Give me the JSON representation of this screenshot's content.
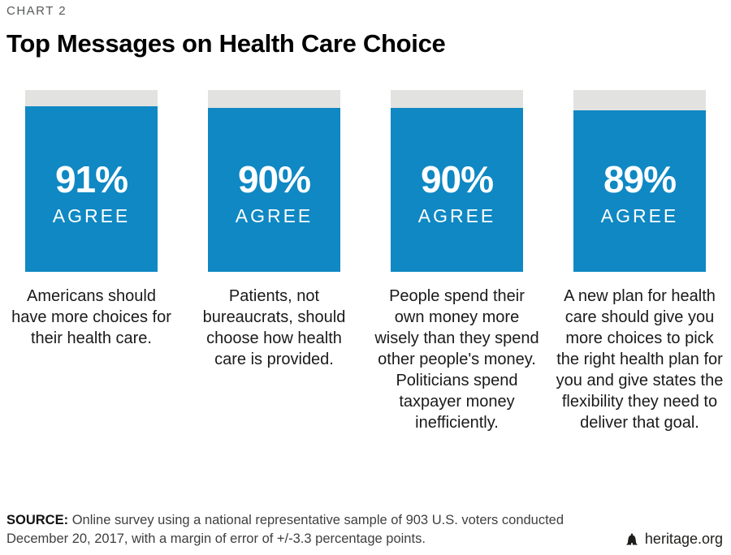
{
  "header": {
    "kicker": "CHART 2",
    "title": "Top Messages on Health Care Choice"
  },
  "chart_data": {
    "type": "bar",
    "title": "Top Messages on Health Care Choice",
    "unit": "% agree",
    "ylim": [
      0,
      100
    ],
    "grid": false,
    "legend": false,
    "values": [
      91,
      90,
      90,
      89
    ],
    "value_labels": [
      "91%",
      "90%",
      "90%",
      "89%"
    ],
    "value_sublabel": "AGREE",
    "categories": [
      "Americans should have more choices for their health care.",
      "Patients, not bureaucrats, should choose how health care is provided.",
      "People spend their own money more wisely than they spend other people's money. Politicians spend taxpayer money inefficiently.",
      "A new plan for health care should give you more choices to pick the right health plan for you and give states the flexibility they need to deliver that goal."
    ],
    "bar_color": "#0f88c3",
    "track_color": "#e2e2e0",
    "value_text_color": "#ffffff"
  },
  "footer": {
    "source_label": "SOURCE:",
    "source_text": "Online survey using a national representative sample of 903 U.S. voters conducted December 20, 2017, with a margin of error of +/-3.3 percentage points.",
    "brand": "heritage.org",
    "brand_icon": "bell-icon"
  }
}
